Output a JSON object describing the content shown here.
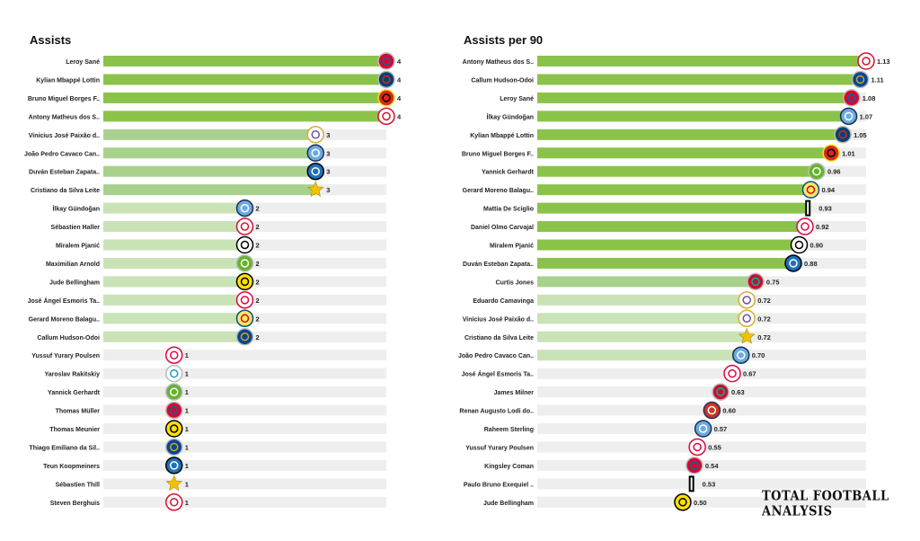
{
  "brand": "TOTAL FOOTBALL ANALYSIS",
  "colors": {
    "track": "#eeeeee",
    "dark": "#8bc34a",
    "mid": "#a9d18e",
    "light": "#c9e3b6",
    "text": "#222222"
  },
  "chart_data": [
    {
      "type": "bar",
      "orientation": "horizontal",
      "title": "Assists",
      "xlim": [
        0,
        4
      ],
      "categories": [
        "Leroy Sané",
        "Kylian Mbappé Lottin",
        "Bruno Miguel Borges F..",
        "Antony Matheus dos S..",
        "Vinicius José Paixão d..",
        "João Pedro Cavaco Can..",
        "Duván Esteban Zapata..",
        "Cristiano da Silva Leite",
        "İlkay Gündoğan",
        "Sébastien Haller",
        "Miralem Pjanić",
        "Maximilian Arnold",
        "Jude Bellingham",
        "José Ángel Esmoris Ta..",
        "Gerard Moreno Balagu..",
        "Callum Hudson-Odoi",
        "Yussuf Yurary Poulsen",
        "Yaroslav Rakitskiy",
        "Yannick Gerhardt",
        "Thomas Müller",
        "Thomas Meunier",
        "Thiago Emiliano da Sil..",
        "Teun Koopmeiners",
        "Sébastien Thill",
        "Steven Berghuis"
      ],
      "values": [
        4,
        4,
        4,
        4,
        3,
        3,
        3,
        3,
        2,
        2,
        2,
        2,
        2,
        2,
        2,
        2,
        1,
        1,
        1,
        1,
        1,
        1,
        1,
        1,
        1
      ],
      "value_labels": [
        "4",
        "4",
        "4",
        "4",
        "3",
        "3",
        "3",
        "3",
        "2",
        "2",
        "2",
        "2",
        "2",
        "2",
        "2",
        "2",
        "1",
        "1",
        "1",
        "1",
        "1",
        "1",
        "1",
        "1",
        "1"
      ],
      "logos": [
        "bayern-badge",
        "psg-badge",
        "manutd-badge",
        "ajax-badge",
        "realmadrid-badge",
        "mancity-badge",
        "atalanta-badge",
        "sheriff-badge",
        "mancity-badge",
        "ajax-badge",
        "besiktas-badge",
        "wolfsburg-badge",
        "dortmund-badge",
        "leipzig-badge",
        "villarreal-badge",
        "chelsea-badge",
        "leipzig-badge",
        "zenit-badge",
        "wolfsburg-badge",
        "bayern-badge",
        "dortmund-badge",
        "chelsea-badge",
        "atalanta-badge",
        "sheriff-badge",
        "ajax-badge"
      ]
    },
    {
      "type": "bar",
      "orientation": "horizontal",
      "title": "Assists per 90",
      "xlim": [
        0,
        1.13
      ],
      "categories": [
        "Antony Matheus dos S..",
        "Callum Hudson-Odoi",
        "Leroy Sané",
        "İlkay Gündoğan",
        "Kylian Mbappé Lottin",
        "Bruno Miguel Borges F..",
        "Yannick Gerhardt",
        "Gerard Moreno Balagu..",
        "Mattia De Sciglio",
        "Daniel Olmo Carvajal",
        "Miralem Pjanić",
        "Duván Esteban Zapata..",
        "Curtis Jones",
        "Eduardo Camavinga",
        "Vinicius José Paixão d..",
        "Cristiano da Silva Leite",
        "João Pedro Cavaco Can..",
        "José Ángel Esmoris Ta..",
        "James Milner",
        "Renan Augusto Lodi do..",
        "Raheem Sterling",
        "Yussuf Yurary Poulsen",
        "Kingsley Coman",
        "Paulo Bruno Exequiel ..",
        "Jude Bellingham"
      ],
      "values": [
        1.13,
        1.11,
        1.08,
        1.07,
        1.05,
        1.01,
        0.96,
        0.94,
        0.93,
        0.92,
        0.9,
        0.88,
        0.75,
        0.72,
        0.72,
        0.72,
        0.7,
        0.67,
        0.63,
        0.6,
        0.57,
        0.55,
        0.54,
        0.53,
        0.5
      ],
      "value_labels": [
        "1.13",
        "1.11",
        "1.08",
        "1.07",
        "1.05",
        "1.01",
        "0.96",
        "0.94",
        "0.93",
        "0.92",
        "0.90",
        "0.88",
        "0.75",
        "0.72",
        "0.72",
        "0.72",
        "0.70",
        "0.67",
        "0.63",
        "0.60",
        "0.57",
        "0.55",
        "0.54",
        "0.53",
        "0.50"
      ],
      "logos": [
        "ajax-badge",
        "chelsea-badge",
        "bayern-badge",
        "mancity-badge",
        "psg-badge",
        "manutd-badge",
        "wolfsburg-badge",
        "villarreal-badge",
        "juventus-badge",
        "leipzig-badge",
        "besiktas-badge",
        "atalanta-badge",
        "liverpool-badge",
        "realmadrid-badge",
        "realmadrid-badge",
        "sheriff-badge",
        "mancity-badge",
        "leipzig-badge",
        "liverpool-badge",
        "atletico-badge",
        "mancity-badge",
        "leipzig-badge",
        "bayern-badge",
        "juventus-badge",
        "dortmund-badge"
      ]
    }
  ]
}
